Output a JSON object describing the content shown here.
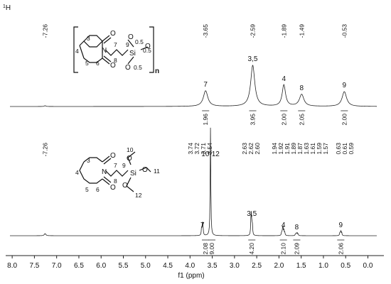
{
  "chart_data": {
    "type": "line",
    "nucleus_label": "1H",
    "x_label": "f1 (ppm)",
    "x_range": [
      8.05,
      -0.2
    ],
    "x_ticks": [
      "8.0",
      "7.5",
      "7.0",
      "6.5",
      "6.0",
      "5.5",
      "5.0",
      "4.5",
      "4.0",
      "3.5",
      "3.0",
      "2.5",
      "2.0",
      "1.5",
      "1.0",
      "0.5",
      "0.0"
    ],
    "spectra": [
      {
        "id": "polymer",
        "peaks": [
          {
            "ppm": 7.26,
            "height": 0.02,
            "width": 0.02
          },
          {
            "ppm": 3.65,
            "height": 0.38,
            "width": 0.06
          },
          {
            "ppm": 2.59,
            "height": 1.0,
            "width": 0.055
          },
          {
            "ppm": 1.89,
            "height": 0.52,
            "width": 0.045
          },
          {
            "ppm": 1.49,
            "height": 0.29,
            "width": 0.06
          },
          {
            "ppm": 0.53,
            "height": 0.36,
            "width": 0.06
          }
        ],
        "shift_labels": [
          "-7.26",
          "-3.65",
          "-2.59",
          "-1.89",
          "-1.49",
          "-0.53"
        ],
        "assignments": [
          {
            "ppm": 3.65,
            "label": "7"
          },
          {
            "ppm": 2.59,
            "label": "3,5"
          },
          {
            "ppm": 1.89,
            "label": "4"
          },
          {
            "ppm": 1.49,
            "label": "8"
          },
          {
            "ppm": 0.53,
            "label": "9"
          }
        ],
        "integrals": [
          {
            "ppm": 3.65,
            "value": "1.96"
          },
          {
            "ppm": 2.59,
            "value": "3.95"
          },
          {
            "ppm": 1.89,
            "value": "2.00"
          },
          {
            "ppm": 1.49,
            "value": "2.05"
          },
          {
            "ppm": 0.53,
            "value": "2.00"
          }
        ]
      },
      {
        "id": "monomer",
        "peaks": [
          {
            "ppm": 7.26,
            "height": 0.02,
            "width": 0.02
          },
          {
            "ppm": 3.74,
            "height": 0.07,
            "width": 0.008
          },
          {
            "ppm": 3.72,
            "height": 0.1,
            "width": 0.008
          },
          {
            "ppm": 3.71,
            "height": 0.07,
            "width": 0.008
          },
          {
            "ppm": 3.54,
            "height": 1.0,
            "width": 0.008
          },
          {
            "ppm": 2.63,
            "height": 0.12,
            "width": 0.008
          },
          {
            "ppm": 2.62,
            "height": 0.17,
            "width": 0.008
          },
          {
            "ppm": 2.6,
            "height": 0.12,
            "width": 0.008
          },
          {
            "ppm": 1.94,
            "height": 0.03,
            "width": 0.008
          },
          {
            "ppm": 1.92,
            "height": 0.05,
            "width": 0.008
          },
          {
            "ppm": 1.91,
            "height": 0.06,
            "width": 0.008
          },
          {
            "ppm": 1.89,
            "height": 0.05,
            "width": 0.008
          },
          {
            "ppm": 1.87,
            "height": 0.03,
            "width": 0.008
          },
          {
            "ppm": 1.63,
            "height": 0.015,
            "width": 0.008
          },
          {
            "ppm": 1.61,
            "height": 0.025,
            "width": 0.008
          },
          {
            "ppm": 1.59,
            "height": 0.025,
            "width": 0.008
          },
          {
            "ppm": 1.57,
            "height": 0.015,
            "width": 0.008
          },
          {
            "ppm": 0.63,
            "height": 0.03,
            "width": 0.008
          },
          {
            "ppm": 0.61,
            "height": 0.045,
            "width": 0.008
          },
          {
            "ppm": 0.59,
            "height": 0.03,
            "width": 0.008
          }
        ],
        "shift_labels": [
          "-7.26",
          "3.74",
          "3.72",
          "3.71",
          "3.54",
          "2.63",
          "2.62",
          "2.60",
          "1.94",
          "1.92",
          "1.91",
          "1.89",
          "1.87",
          "1.63",
          "1.61",
          "1.59",
          "1.57",
          "0.63",
          "0.61",
          "0.59"
        ],
        "assignments": [
          {
            "ppm": 3.54,
            "label": "10-12"
          },
          {
            "ppm": 3.72,
            "label": "7"
          },
          {
            "ppm": 2.61,
            "label": "3,5"
          },
          {
            "ppm": 1.9,
            "label": "4"
          },
          {
            "ppm": 1.6,
            "label": "8"
          },
          {
            "ppm": 0.61,
            "label": "9"
          }
        ],
        "integrals": [
          {
            "ppm": 3.72,
            "value": "2.08"
          },
          {
            "ppm": 3.54,
            "value": "9.00"
          },
          {
            "ppm": 2.61,
            "value": "4.20"
          },
          {
            "ppm": 1.9,
            "value": "2.10"
          },
          {
            "ppm": 1.6,
            "value": "2.09"
          },
          {
            "ppm": 0.61,
            "value": "2.06"
          }
        ]
      }
    ],
    "structures": {
      "polymer": {
        "atoms": [
          "3",
          "4",
          "5",
          "6",
          "N",
          "O",
          "O",
          "7",
          "8",
          "9",
          "Si",
          "O",
          "O",
          "O",
          "0.5",
          "0.5",
          "0.5",
          "n"
        ]
      },
      "monomer": {
        "atoms": [
          "3",
          "4",
          "5",
          "6",
          "N",
          "O",
          "O",
          "7",
          "8",
          "9",
          "Si",
          "O",
          "O",
          "O",
          "10",
          "11",
          "12"
        ]
      }
    }
  }
}
